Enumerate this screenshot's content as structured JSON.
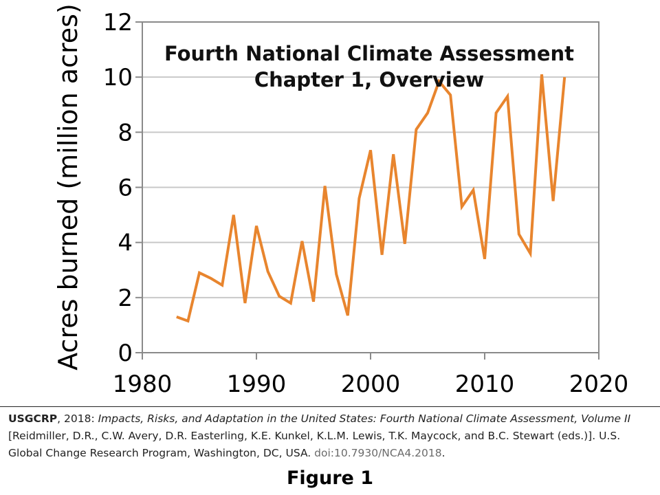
{
  "chart_data": {
    "type": "line",
    "title_lines": [
      "Fourth National Climate Assessment",
      "Chapter 1, Overview"
    ],
    "xlabel": "",
    "ylabel": "Acres burned (million acres)",
    "xlim": [
      1980,
      2020
    ],
    "ylim": [
      0,
      12
    ],
    "x_ticks": [
      1980,
      1990,
      2000,
      2010,
      2020
    ],
    "y_ticks": [
      0,
      2,
      4,
      6,
      8,
      10,
      12
    ],
    "grid": "horizontal",
    "series_color": "#e8852e",
    "series": [
      {
        "x": [
          1983,
          1984,
          1985,
          1986,
          1987,
          1988,
          1989,
          1990,
          1991,
          1992,
          1993,
          1994,
          1995,
          1996,
          1997,
          1998,
          1999,
          2000,
          2001,
          2002,
          2003,
          2004,
          2005,
          2006,
          2007,
          2008,
          2009,
          2010,
          2011,
          2012,
          2013,
          2014,
          2015,
          2016,
          2017
        ],
        "values": [
          1.3,
          1.15,
          2.9,
          2.7,
          2.45,
          5.0,
          1.8,
          4.6,
          2.95,
          2.05,
          1.8,
          4.05,
          1.85,
          6.05,
          2.85,
          1.35,
          5.6,
          7.35,
          3.55,
          7.2,
          3.95,
          8.1,
          8.7,
          9.85,
          9.35,
          5.3,
          5.9,
          3.4,
          8.7,
          9.3,
          4.3,
          3.6,
          10.1,
          5.5,
          10.0
        ]
      }
    ]
  },
  "citation": {
    "author": "USGCRP",
    "year_text": ", 2018: ",
    "title": "Impacts, Risks, and Adaptation in the United States: Fourth National Climate Assessment, Volume II",
    "editors": " [Reidmiller, D.R., C.W. Avery, D.R. Easterling, K.E. Kunkel, K.L.M. Lewis, T.K. Maycock, and B.C. Stewart (eds.)]. U.S. Global Change Research Program, Washington, DC, USA. ",
    "doi": "doi:10.7930/NCA4.2018",
    "end": "."
  },
  "figure_caption": "Figure 1"
}
